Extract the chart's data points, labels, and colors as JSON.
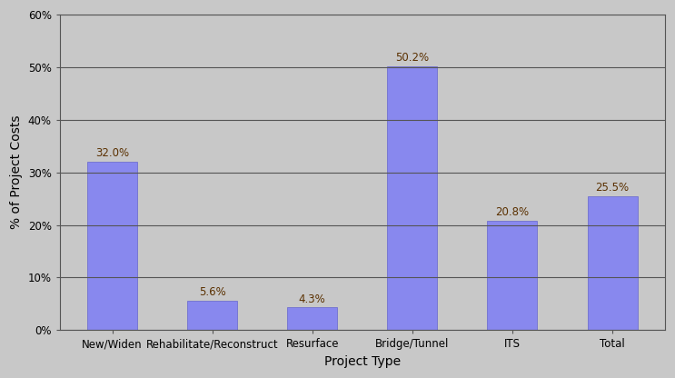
{
  "categories": [
    "New/Widen",
    "Rehabilitate/Reconstruct",
    "Resurface",
    "Bridge/Tunnel",
    "ITS",
    "Total"
  ],
  "values": [
    32.0,
    5.6,
    4.3,
    50.2,
    20.8,
    25.5
  ],
  "bar_color": "#8888ee",
  "bar_edgecolor": "#6666cc",
  "background_color": "#c8c8c8",
  "plot_bg_color": "#c8c8c8",
  "ylabel": "% of Project Costs",
  "xlabel": "Project Type",
  "ylim": [
    0,
    60
  ],
  "yticks": [
    0,
    10,
    20,
    30,
    40,
    50,
    60
  ],
  "ytick_labels": [
    "0%",
    "10%",
    "20%",
    "30%",
    "40%",
    "50%",
    "60%"
  ],
  "label_color": "#5a3000",
  "label_fontsize": 8.5,
  "axis_fontsize": 10,
  "tick_fontsize": 8.5,
  "grid_color": "#555555",
  "bar_width": 0.5
}
